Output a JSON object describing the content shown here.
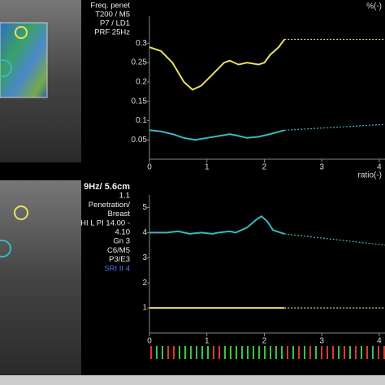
{
  "scanner_text": {
    "top": [
      "Freq. penet",
      "T200 / M5",
      "P7 / LD1",
      "PRF 25Hz"
    ],
    "bottom": [
      "9Hz/ 5.6cm",
      "1.1",
      "Penetration/",
      "Breast",
      "HI L PI 14.00 -",
      "4.10",
      "Gn  3",
      "C6/M5",
      "P3/E3",
      "SRI II 4"
    ]
  },
  "chart_data": [
    {
      "type": "line",
      "unit_label": "%(-)",
      "xlim": [
        0,
        4.1
      ],
      "xticks": [
        0,
        1,
        2,
        3,
        4
      ],
      "ylim": [
        0,
        0.37
      ],
      "yticks": [
        0.05,
        0.1,
        0.15,
        0.2,
        0.25,
        0.3
      ],
      "series": [
        {
          "color": "#e8e060",
          "style": "solid",
          "x": [
            0,
            0.2,
            0.4,
            0.6,
            0.75,
            0.9,
            1.1,
            1.3,
            1.4,
            1.55,
            1.7,
            1.9,
            2.0,
            2.1,
            2.25,
            2.35
          ],
          "values": [
            0.29,
            0.28,
            0.25,
            0.2,
            0.18,
            0.19,
            0.22,
            0.25,
            0.255,
            0.245,
            0.25,
            0.245,
            0.25,
            0.27,
            0.29,
            0.31
          ]
        },
        {
          "color": "#e8e060",
          "style": "dotted",
          "x": [
            2.35,
            4.1
          ],
          "values": [
            0.31,
            0.31
          ]
        },
        {
          "color": "#3ab8c0",
          "style": "solid",
          "x": [
            0,
            0.2,
            0.4,
            0.6,
            0.8,
            1.0,
            1.2,
            1.4,
            1.5,
            1.7,
            1.9,
            2.1,
            2.35
          ],
          "values": [
            0.075,
            0.072,
            0.065,
            0.055,
            0.05,
            0.055,
            0.06,
            0.065,
            0.062,
            0.055,
            0.058,
            0.065,
            0.075
          ]
        },
        {
          "color": "#3ab8c0",
          "style": "dotted",
          "x": [
            2.35,
            4.1
          ],
          "values": [
            0.075,
            0.09
          ]
        }
      ]
    },
    {
      "type": "line",
      "unit_label": "ratio(-)",
      "xlim": [
        0,
        4.1
      ],
      "xticks": [
        0,
        1,
        2,
        3,
        4
      ],
      "ylim": [
        0,
        5.5
      ],
      "yticks": [
        1,
        2,
        3,
        4,
        5
      ],
      "series": [
        {
          "color": "#3ab8c0",
          "style": "solid",
          "x": [
            0,
            0.3,
            0.5,
            0.7,
            0.9,
            1.1,
            1.2,
            1.4,
            1.5,
            1.7,
            1.85,
            1.95,
            2.05,
            2.15,
            2.35
          ],
          "values": [
            4.0,
            4.0,
            4.05,
            3.95,
            4.0,
            3.95,
            4.0,
            4.05,
            4.0,
            4.2,
            4.5,
            4.65,
            4.45,
            4.1,
            3.95
          ]
        },
        {
          "color": "#3ab8c0",
          "style": "dotted",
          "x": [
            2.35,
            4.1
          ],
          "values": [
            3.95,
            3.5
          ]
        },
        {
          "color": "#e8e060",
          "style": "solid",
          "x": [
            0,
            2.35
          ],
          "values": [
            1,
            1
          ]
        },
        {
          "color": "#e8e060",
          "style": "dotted",
          "x": [
            2.35,
            4.1
          ],
          "values": [
            1,
            1
          ]
        }
      ]
    }
  ]
}
